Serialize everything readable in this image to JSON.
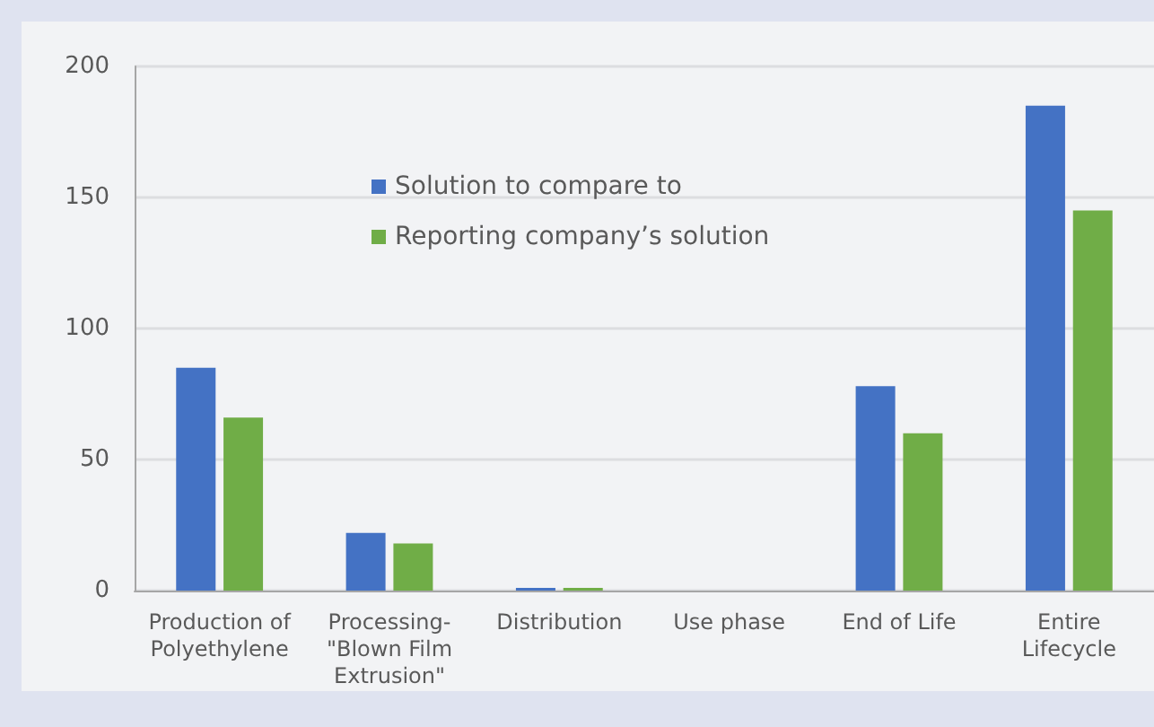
{
  "chart_data": {
    "type": "bar",
    "categories": [
      "Production of\nPolyethylene",
      "Processing-\n\"Blown Film\nExtrusion\"",
      "Distribution",
      "Use phase",
      "End of Life",
      "Entire\nLifecycle"
    ],
    "series": [
      {
        "name": "Solution to compare to",
        "color": "#4472c4",
        "values": [
          85,
          22,
          1,
          0,
          78,
          185
        ]
      },
      {
        "name": "Reporting company’s solution",
        "color": "#70ad47",
        "values": [
          66,
          18,
          1,
          0,
          60,
          145
        ]
      }
    ],
    "ylim": [
      0,
      200
    ],
    "yticks": [
      0,
      50,
      100,
      150,
      200
    ],
    "grid": "y",
    "legend": "top left"
  }
}
